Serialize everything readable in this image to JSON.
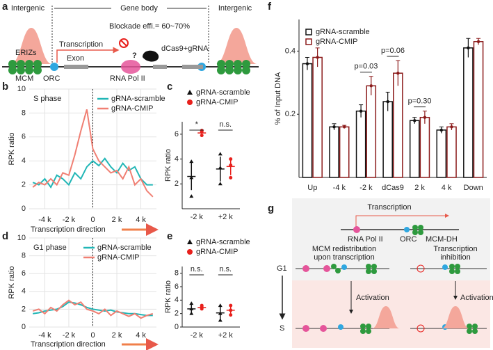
{
  "panel_labels": [
    "a",
    "b",
    "c",
    "d",
    "e",
    "f",
    "g"
  ],
  "diagram_a": {
    "region_left": "Intergenic",
    "region_middle": "Gene body",
    "region_right": "Intergenic",
    "blockade": "Blockade effi.= 60~70%",
    "transcription": "Transcription",
    "question": "?",
    "dcas9": "dCas9+gRNA",
    "erizs": "ERIZs",
    "exon": "Exon",
    "mcm": "MCM",
    "orc": "ORC",
    "pol": "RNA Pol II"
  },
  "chart_data": [
    {
      "type": "line",
      "title": "S phase",
      "xlabel": "Transcription direction",
      "ylabel": "RPK ratio",
      "x": [
        -5,
        -4.5,
        -4,
        -3.5,
        -3,
        -2.5,
        -2,
        -1.5,
        -1,
        -0.5,
        0,
        0.5,
        1,
        1.5,
        2,
        2.5,
        3,
        3.5,
        4,
        4.5,
        5
      ],
      "series": [
        {
          "name": "gRNA-scramble",
          "color": "#21b6b6",
          "values": [
            2.2,
            2.0,
            2.5,
            1.8,
            2.8,
            2.5,
            2.0,
            3.0,
            2.5,
            3.5,
            4.0,
            3.6,
            4.2,
            3.5,
            3.0,
            3.8,
            3.2,
            3.5,
            2.5,
            2.0,
            2.0
          ]
        },
        {
          "name": "gRNA-CMIP",
          "color": "#f07f73",
          "values": [
            1.8,
            2.2,
            2.0,
            2.5,
            2.0,
            3.0,
            2.8,
            4.5,
            6.5,
            8.3,
            5.0,
            4.0,
            3.5,
            3.0,
            3.2,
            2.5,
            3.5,
            2.0,
            2.5,
            1.5,
            1.0
          ]
        }
      ],
      "xlim": [
        -5.3,
        5.3
      ],
      "xticks": [
        {
          "value": -4,
          "label": "-4 k"
        },
        {
          "value": -2,
          "label": "-2 k"
        },
        0,
        {
          "value": 2,
          "label": "2 k"
        },
        {
          "value": 4,
          "label": "4 k"
        }
      ],
      "ylim": [
        0,
        10
      ],
      "yticks": [
        0,
        2,
        4,
        6,
        8,
        10
      ],
      "grid": true,
      "reference_line_x": 0
    },
    {
      "type": "line",
      "title": "G1 phase",
      "xlabel": "Transcription direction",
      "ylabel": "RPK ratio",
      "x": [
        -5,
        -4.5,
        -4,
        -3.5,
        -3,
        -2.5,
        -2,
        -1.5,
        -1,
        -0.5,
        0,
        0.5,
        1,
        1.5,
        2,
        2.5,
        3,
        3.5,
        4,
        4.5,
        5
      ],
      "series": [
        {
          "name": "gRNA-scramble",
          "color": "#21b6b6",
          "values": [
            1.5,
            1.6,
            1.8,
            1.9,
            2.0,
            2.3,
            2.8,
            2.7,
            2.5,
            2.2,
            2.0,
            1.9,
            1.8,
            1.9,
            1.7,
            1.6,
            1.5,
            1.5,
            1.4,
            1.3,
            1.3
          ]
        },
        {
          "name": "gRNA-CMIP",
          "color": "#f07f73",
          "values": [
            1.8,
            2.0,
            1.5,
            2.2,
            1.8,
            2.5,
            3.0,
            2.5,
            2.8,
            2.0,
            1.8,
            1.5,
            2.0,
            1.3,
            1.8,
            1.5,
            1.2,
            1.5,
            1.0,
            1.3,
            1.5
          ]
        }
      ],
      "xlim": [
        -5.3,
        5.3
      ],
      "xticks": [
        {
          "value": -4,
          "label": "-4 k"
        },
        {
          "value": -2,
          "label": "-2 k"
        },
        0,
        {
          "value": 2,
          "label": "2 k"
        },
        {
          "value": 4,
          "label": "4 k"
        }
      ],
      "ylim": [
        0,
        10
      ],
      "yticks": [
        0,
        2,
        4,
        6,
        8,
        10
      ],
      "grid": true,
      "reference_line_x": 0
    },
    {
      "type": "dot",
      "ylabel": "RPK ratio",
      "categories": [
        "-2 k",
        "+2 k"
      ],
      "series": [
        {
          "name": "gRNA-scramble",
          "color": "#111111",
          "marker": "triangle",
          "values": [
            [
              1.0,
              2.5,
              3.8
            ],
            [
              2.0,
              3.3,
              4.4
            ]
          ],
          "means": [
            2.6,
            3.2
          ],
          "errors": [
            1.1,
            1.0
          ]
        },
        {
          "name": "gRNA-CMIP",
          "color": "#e8201c",
          "marker": "circle",
          "values": [
            [
              5.9,
              6.2,
              6.3
            ],
            [
              2.5,
              3.5,
              4.0
            ]
          ],
          "means": [
            6.1,
            3.4
          ],
          "errors": [
            0.2,
            0.7
          ]
        }
      ],
      "significance": [
        "*",
        "n.s."
      ],
      "ylim": [
        0,
        7
      ],
      "yticks": [
        2,
        4,
        6
      ]
    },
    {
      "type": "dot",
      "ylabel": "RPK ratio",
      "categories": [
        "-2 k",
        "+2 k"
      ],
      "series": [
        {
          "name": "gRNA-scramble",
          "color": "#111111",
          "marker": "triangle",
          "values": [
            [
              2.0,
              2.7,
              3.5
            ],
            [
              1.0,
              2.0,
              3.2
            ]
          ],
          "means": [
            2.7,
            2.1
          ],
          "errors": [
            0.8,
            1.1
          ]
        },
        {
          "name": "gRNA-CMIP",
          "color": "#e8201c",
          "marker": "circle",
          "values": [
            [
              2.7,
              3.0,
              3.2
            ],
            [
              1.8,
              2.5,
              3.2
            ]
          ],
          "means": [
            2.9,
            2.5
          ],
          "errors": [
            0.3,
            0.7
          ]
        }
      ],
      "significance": [
        "n.s.",
        "n.s."
      ],
      "ylim": [
        0,
        9
      ],
      "yticks": [
        0,
        2,
        4,
        6,
        8
      ]
    },
    {
      "type": "bar",
      "ylabel": "% of Input DNA",
      "categories": [
        "Up",
        "-4 k",
        "-2 k",
        "dCas9",
        "2 k",
        "4 k",
        "Down"
      ],
      "series": [
        {
          "name": "gRNA-scramble",
          "color": "#111111",
          "values": [
            0.36,
            0.16,
            0.21,
            0.24,
            0.18,
            0.15,
            0.41
          ],
          "errors": [
            0.02,
            0.01,
            0.02,
            0.03,
            0.01,
            0.01,
            0.03
          ]
        },
        {
          "name": "gRNA-CMIP",
          "color": "#8b1a1a",
          "values": [
            0.38,
            0.16,
            0.29,
            0.33,
            0.19,
            0.16,
            0.43
          ],
          "errors": [
            0.03,
            0.005,
            0.03,
            0.04,
            0.02,
            0.01,
            0.01
          ]
        }
      ],
      "significance": [
        null,
        null,
        "p=0.03",
        "p=0.06",
        "p=0.30",
        null,
        null
      ],
      "ylim": [
        0,
        0.5
      ],
      "yticks": [
        0.2,
        0.4
      ]
    }
  ],
  "diagram_g": {
    "transcription": "Transcription",
    "pol": "RNA Pol II",
    "orc": "ORC",
    "mcm_dh": "MCM-DH",
    "redistribution": [
      "MCM redistribution",
      "upon transcription"
    ],
    "inhibition": [
      "Transcription",
      "inhibition"
    ],
    "g1": "G1",
    "s": "S",
    "activation_left": "Activation",
    "activation_right": "Activation"
  }
}
